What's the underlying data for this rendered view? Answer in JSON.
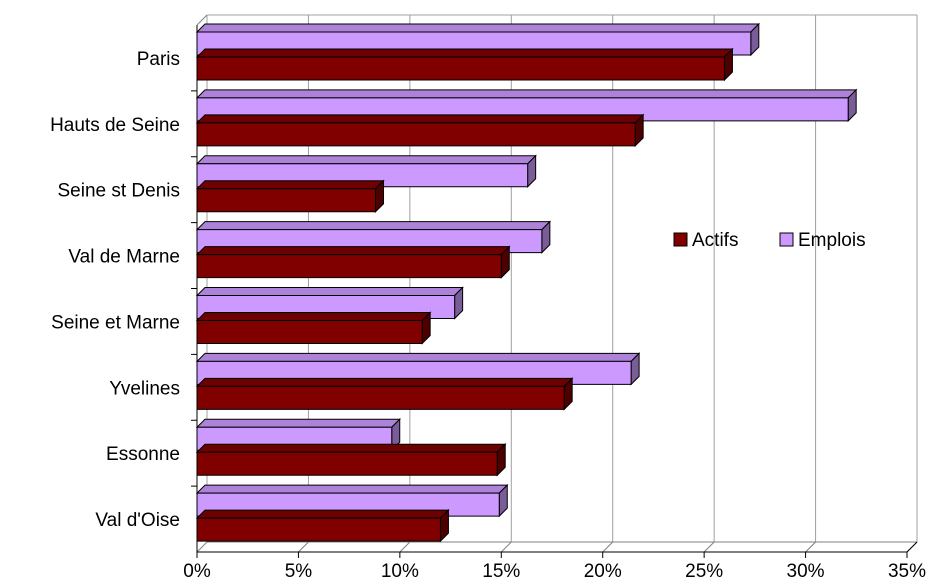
{
  "chart_data": {
    "type": "bar",
    "orientation": "horizontal",
    "style": "3d",
    "title": "",
    "xlabel": "",
    "ylabel": "",
    "categories": [
      "Paris",
      "Hauts de Seine",
      "Seine st Denis",
      "Val de Marne",
      "Seine et Marne",
      "Yvelines",
      "Essonne",
      "Val d'Oise"
    ],
    "series": [
      {
        "name": "Actifs",
        "color": "#800000",
        "values": [
          26.0,
          21.6,
          8.8,
          15.0,
          11.1,
          18.1,
          14.8,
          12.0
        ]
      },
      {
        "name": "Emplois",
        "color": "#cc99ff",
        "values": [
          27.3,
          32.1,
          16.3,
          17.0,
          12.7,
          21.4,
          9.6,
          14.9
        ]
      }
    ],
    "xlim": [
      0,
      35
    ],
    "x_ticks": [
      "0%",
      "5%",
      "10%",
      "15%",
      "20%",
      "25%",
      "30%",
      "35%"
    ],
    "grid": "vertical",
    "legend": "right"
  }
}
